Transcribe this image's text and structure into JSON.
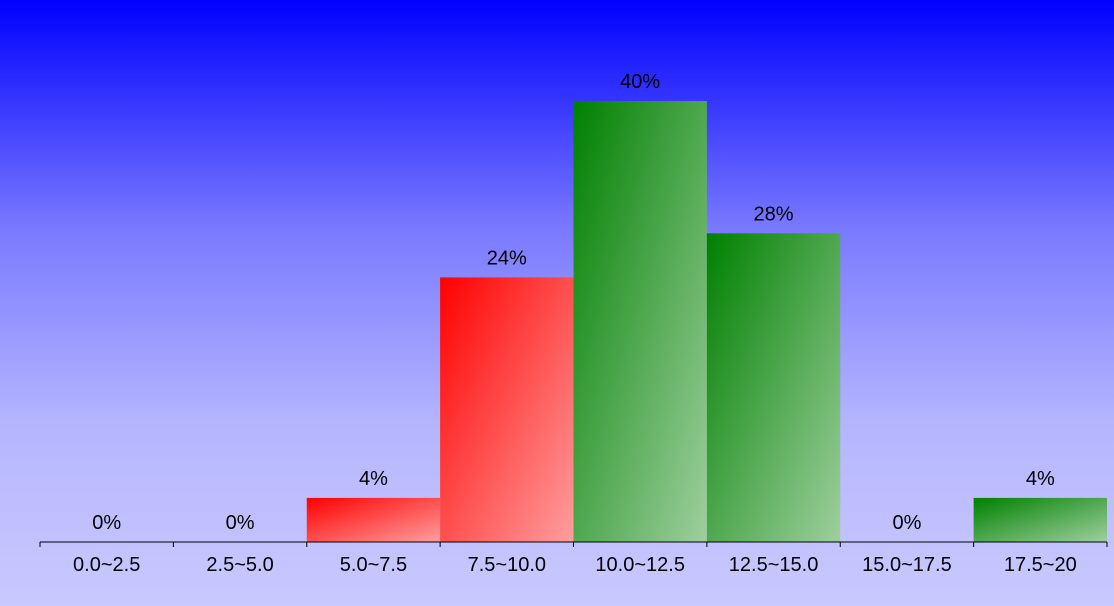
{
  "chart_data": {
    "type": "bar",
    "categories": [
      "0.0~2.5",
      "2.5~5.0",
      "5.0~7.5",
      "7.5~10.0",
      "10.0~12.5",
      "12.5~15.0",
      "15.0~17.5",
      "17.5~20"
    ],
    "values": [
      0,
      0,
      4,
      24,
      40,
      28,
      0,
      4
    ],
    "value_labels": [
      "0%",
      "0%",
      "4%",
      "24%",
      "40%",
      "28%",
      "0%",
      "4%"
    ],
    "bar_colors": [
      "#ff0000",
      "#ff0000",
      "#ff0000",
      "#ff0000",
      "#008000",
      "#008000",
      "#008000",
      "#008000"
    ],
    "ylim": [
      0,
      40
    ],
    "grid": false,
    "legend": "none",
    "title": "",
    "xlabel": "",
    "ylabel": ""
  }
}
